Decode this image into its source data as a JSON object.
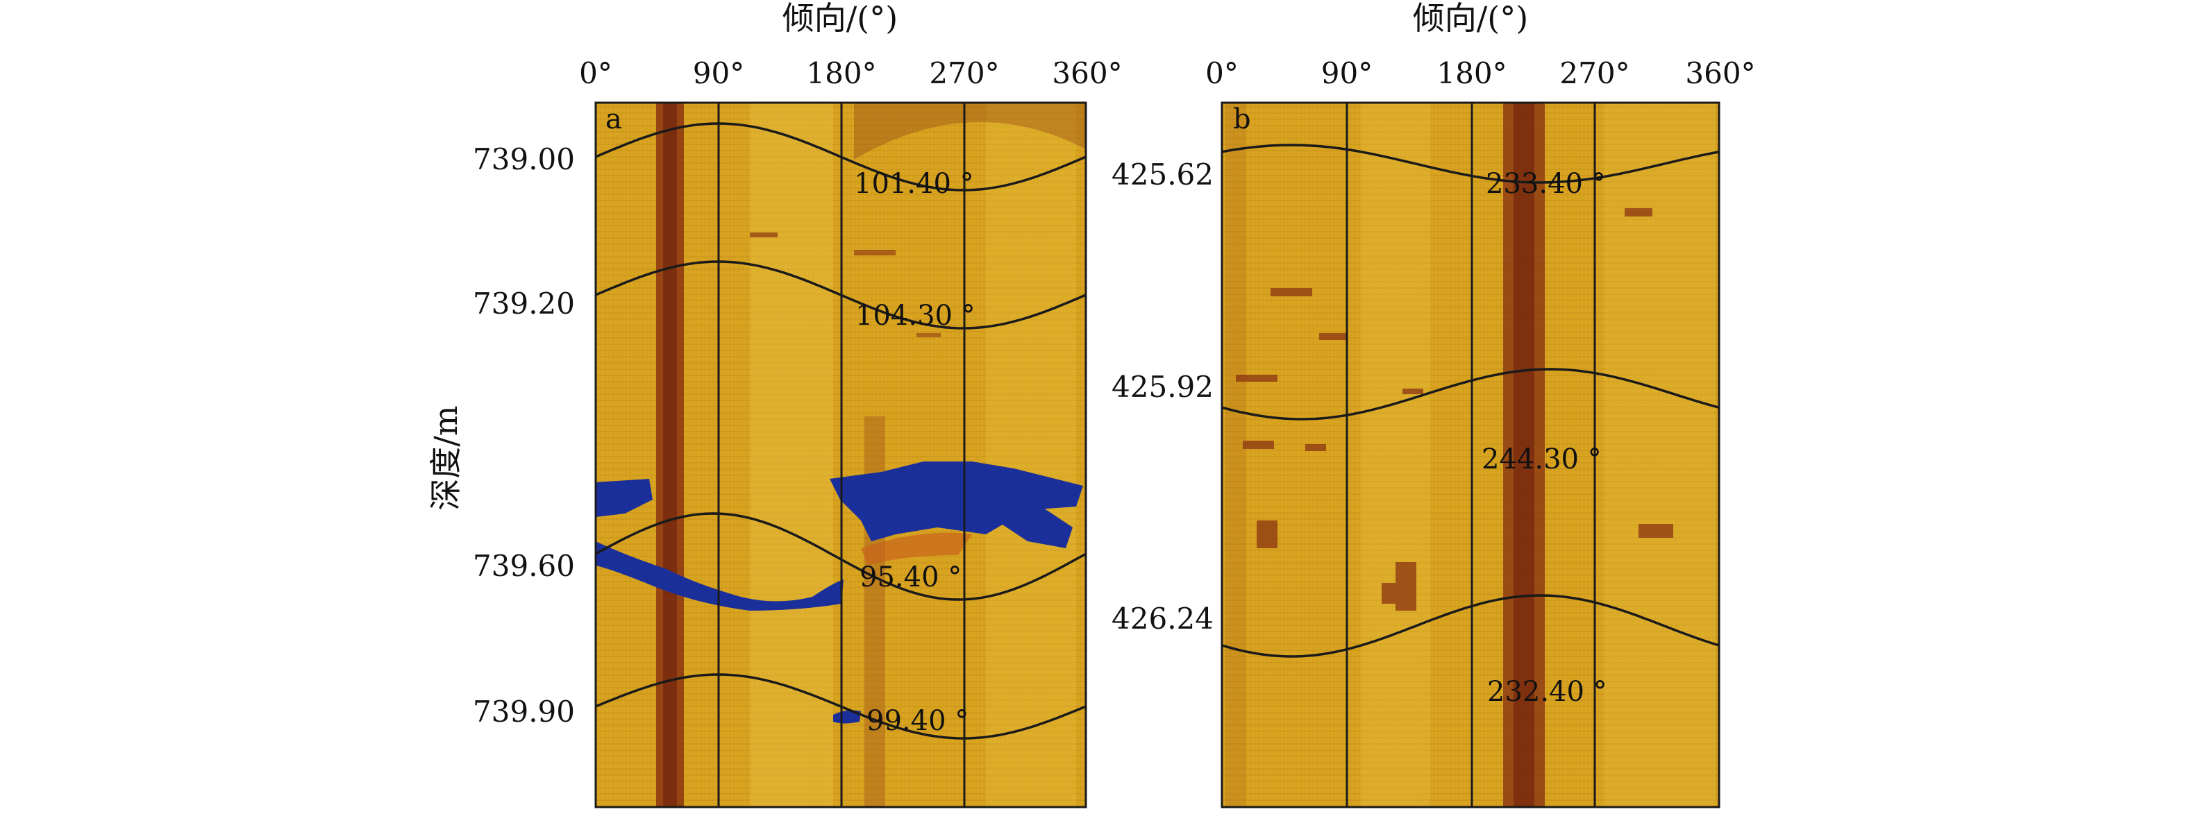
{
  "panels": [
    {
      "id": "a",
      "label": "a",
      "top_title": "倾向/(°)",
      "azimuth_ticks": [
        "0°",
        "90°",
        "180°",
        "270°",
        "360°"
      ],
      "depth_ticks": [
        "739.00",
        "739.20",
        "739.60",
        "739.90"
      ],
      "fractures": [
        {
          "depth": "739.00",
          "dip_angle": "101.40 °"
        },
        {
          "depth": "739.20",
          "dip_angle": "104.30 °"
        },
        {
          "depth": "739.60",
          "dip_angle": "95.40 °"
        },
        {
          "depth": "739.90",
          "dip_angle": "99.40 °"
        }
      ]
    },
    {
      "id": "b",
      "label": "b",
      "top_title": "倾向/(°)",
      "azimuth_ticks": [
        "0°",
        "90°",
        "180°",
        "270°",
        "360°"
      ],
      "depth_ticks": [
        "425.62",
        "425.92",
        "426.24"
      ],
      "fractures": [
        {
          "depth": "425.62",
          "dip_angle": "233.40 °"
        },
        {
          "depth": "425.92",
          "dip_angle": "244.30 °"
        },
        {
          "depth": "426.24",
          "dip_angle": "232.40 °"
        }
      ]
    }
  ],
  "y_axis_title": "深度/m",
  "colors": {
    "background": "#d9a520",
    "dark_band": "#7a2a10",
    "vug_blue": "#1a2f9a",
    "sinusoid": "#1a1a1a"
  }
}
